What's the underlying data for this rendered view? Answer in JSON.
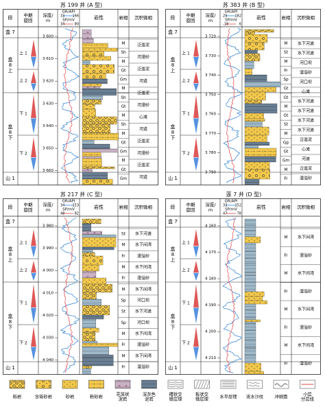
{
  "headers": {
    "seg": "段",
    "cycle": "中期\n旋回",
    "depth": "深度/\nm",
    "lith": "岩性",
    "facies": "岩相",
    "micro": "沉积微相"
  },
  "panels": [
    {
      "title": "苏 199 井 (A 型)",
      "gr_label": "GR/API",
      "gr_min": "33",
      "gr_max": "166",
      "sp_label": "SP/mV",
      "sp_min": "34",
      "sp_max": "80",
      "depths": [
        "3 600",
        "3 610",
        "3 620",
        "3 630",
        "3 640",
        "3 650",
        "3 660"
      ],
      "segments": [
        "盒 7",
        "盒\n8\n上",
        "盒\n8\n下",
        "山 1"
      ],
      "cycles": [
        "上 1",
        "上 2",
        "下 1",
        "下 2"
      ],
      "facies": [
        "M",
        "Sh",
        "M",
        "Gt",
        "Gm",
        "M",
        "Sh",
        "Gt",
        "M",
        "Sh",
        "M",
        "Gt",
        "Gm",
        "M",
        "Gt",
        "Gm"
      ],
      "micro": [
        "泛滥泥",
        "河漫砂",
        "泛滥泥",
        "河道",
        "泛滥泥",
        "河漫砂",
        "心滩",
        "河道",
        "泛滥泥",
        "河漫砂",
        "泛滥泥",
        "河道"
      ]
    },
    {
      "title": "苏 383 井 (B 型)",
      "gr_label": "GR/API",
      "gr_min": "29",
      "gr_max": "182",
      "sp_label": "SP/mV",
      "sp_min": "-18",
      "sp_max": "6",
      "depths": [
        "3 720",
        "3 730",
        "3 740",
        "3 750",
        "3 760",
        "3 770",
        "3 780",
        "3 790"
      ],
      "segments": [
        "盒 7",
        "盒\n8\n上",
        "盒\n8\n下",
        "山 1"
      ],
      "cycles": [
        "上 1",
        "上 2",
        "下 1",
        "下 2"
      ],
      "facies": [
        "M",
        "St",
        "M",
        "Fr",
        "Sp",
        "Gt",
        "Gt",
        "M",
        "Gt",
        "St",
        "M",
        "Gp",
        "Gt",
        "Gm",
        "M",
        "Fr"
      ],
      "micro": [
        "水下河道",
        "水下河道",
        "河口坝",
        "漫溢砂",
        "河口坝",
        "心滩",
        "水下河道",
        "水下河道",
        "水下河道",
        "水下河道",
        "泛滥泥",
        "心滩",
        "河道",
        "泛滥泥",
        "漫溢砂"
      ]
    },
    {
      "title": "苏 217 井 (C 型)",
      "gr_label": "GR/API",
      "gr_min": "34",
      "gr_max": "153",
      "sp_label": "SP/mV",
      "sp_min": "48",
      "sp_max": "82",
      "depths": [
        "3 980",
        "3 990",
        "4 000",
        "4 010",
        "4 020",
        "4 030",
        "4 040"
      ],
      "segments": [
        "盒 7",
        "盒\n8\n上",
        "盒\n8\n下",
        "山 1"
      ],
      "cycles": [
        "上 1",
        "上 2",
        "下 1",
        "下 2"
      ],
      "facies": [
        "St",
        "M",
        "Fr",
        "M",
        "Fr",
        "M",
        "Sp",
        "St",
        "Sp",
        "M",
        "Fr",
        "M",
        "Fr"
      ],
      "micro": [
        "水下河道",
        "水下间湾",
        "漫溢砂",
        "水下间湾",
        "漫溢砂",
        "水下间湾",
        "河口坝",
        "水下河道",
        "河口坝",
        "水下间湾",
        "漫溢砂",
        "水下间湾",
        "漫溢砂"
      ]
    },
    {
      "title": "莲 7 井 (D 型)",
      "gr_label": "GR/API",
      "gr_min": "33",
      "gr_max": "152",
      "sp_label": "SP/mV",
      "sp_min": "47",
      "sp_max": "78",
      "depths": [
        "4 160",
        "4 170",
        "4 180",
        "4 190",
        "4 200",
        "4 210"
      ],
      "segments": [
        "盒 7",
        "盒\n8\n上",
        "盒\n8\n下",
        "山 1"
      ],
      "cycles": [
        "上 1",
        "上 2",
        "下 1",
        "下 2"
      ],
      "facies": [
        "M",
        "Fr",
        "M",
        "Fr",
        "M",
        "Fr",
        "M",
        "Fr"
      ],
      "micro": [
        "水下间湾",
        "漫溢砂",
        "水下间湾",
        "漫溢砂",
        "水下间湾",
        "漫溢砂",
        "水下间湾",
        "漫溢砂"
      ]
    }
  ],
  "legend": [
    {
      "label": "砾岩",
      "pattern": "conglomerate"
    },
    {
      "label": "含砾砂岩",
      "pattern": "pebbly-sandstone"
    },
    {
      "label": "砂岩",
      "pattern": "sandstone"
    },
    {
      "label": "粉砂岩",
      "pattern": "siltstone"
    },
    {
      "label": "花斑状\n泥岩",
      "pattern": "mottled-mudstone"
    },
    {
      "label": "深灰色\n泥岩",
      "pattern": "dark-mudstone"
    },
    {
      "label": "槽状交\n错层理",
      "pattern": "trough-cross"
    },
    {
      "label": "板状交\n错层理",
      "pattern": "tabular-cross"
    },
    {
      "label": "水平层理",
      "pattern": "horizontal"
    },
    {
      "label": "流水沙纹",
      "pattern": "ripple"
    },
    {
      "label": "冲刷面",
      "pattern": "scour"
    },
    {
      "label": "小层\n分层线",
      "pattern": "layer-line"
    }
  ],
  "colors": {
    "sand": "#f2c84b",
    "dark_mud": "#6a7f93",
    "mud": "#9fb8c8",
    "gr_curve": "#2a7fd4",
    "sp_curve": "#e0464b",
    "cycle_red": "#d93a3a",
    "cycle_blue": "#3a7fd9"
  }
}
